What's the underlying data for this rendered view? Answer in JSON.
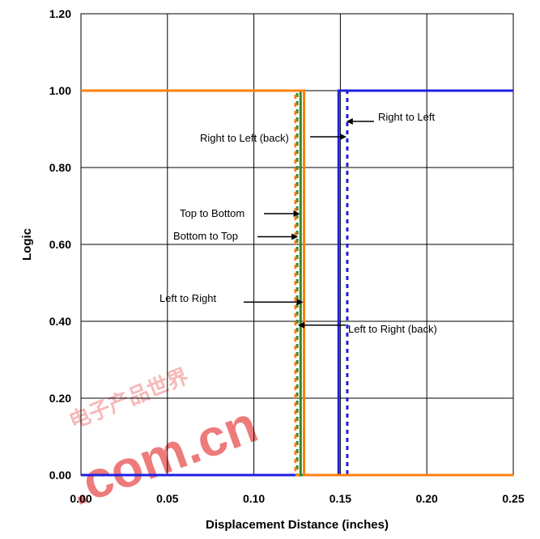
{
  "chart_data": {
    "type": "line",
    "xlabel": "Displacement Distance (inches)",
    "ylabel": "Logic",
    "xlim": [
      0,
      0.25
    ],
    "ylim": [
      0,
      1.2
    ],
    "x_ticks": [
      "0.00",
      "0.05",
      "0.10",
      "0.15",
      "0.20",
      "0.25"
    ],
    "y_ticks": [
      "0.00",
      "0.20",
      "0.40",
      "0.60",
      "0.80",
      "1.00",
      "1.20"
    ],
    "grid": true,
    "legend": "none",
    "series": [
      {
        "color": "#1f1fe0",
        "style": "solid",
        "x": [
          0,
          0.149,
          0.149,
          0.25
        ],
        "y": [
          0,
          0,
          1,
          1
        ]
      },
      {
        "color": "#1f1fe0",
        "style": "dashed",
        "x": [
          0,
          0.154,
          0.154,
          0.25
        ],
        "y": [
          0,
          0,
          1,
          1
        ]
      },
      {
        "color": "#2e8b2e",
        "style": "solid",
        "x": [
          0,
          0.127,
          0.127,
          0.25
        ],
        "y": [
          1,
          1,
          0,
          0
        ]
      },
      {
        "color": "#2e8b2e",
        "style": "dashed",
        "x": [
          0,
          0.125,
          0.125,
          0.25
        ],
        "y": [
          1,
          1,
          0,
          0
        ]
      },
      {
        "color": "#ff7f0e",
        "style": "solid",
        "x": [
          0,
          0.129,
          0.129,
          0.25
        ],
        "y": [
          1,
          1,
          0,
          0
        ]
      },
      {
        "color": "#ff7f0e",
        "style": "dashed",
        "x": [
          0,
          0.124,
          0.124,
          0.25
        ],
        "y": [
          1,
          1,
          0,
          0
        ]
      }
    ],
    "annotations": [
      {
        "text": "Right to Left",
        "x": 0.153,
        "y": 0.92
      },
      {
        "text": "Right to Left (back)",
        "x": 0.154,
        "y": 0.88
      },
      {
        "text": "Top to Bottom",
        "x": 0.127,
        "y": 0.68
      },
      {
        "text": "Bottom to Top",
        "x": 0.126,
        "y": 0.62
      },
      {
        "text": "Left to Right",
        "x": 0.129,
        "y": 0.45
      },
      {
        "text": "Left to Right (back)",
        "x": 0.125,
        "y": 0.39
      }
    ]
  },
  "watermark": {
    "cjk": "电子产品世界",
    "latin": ".com.cn"
  }
}
